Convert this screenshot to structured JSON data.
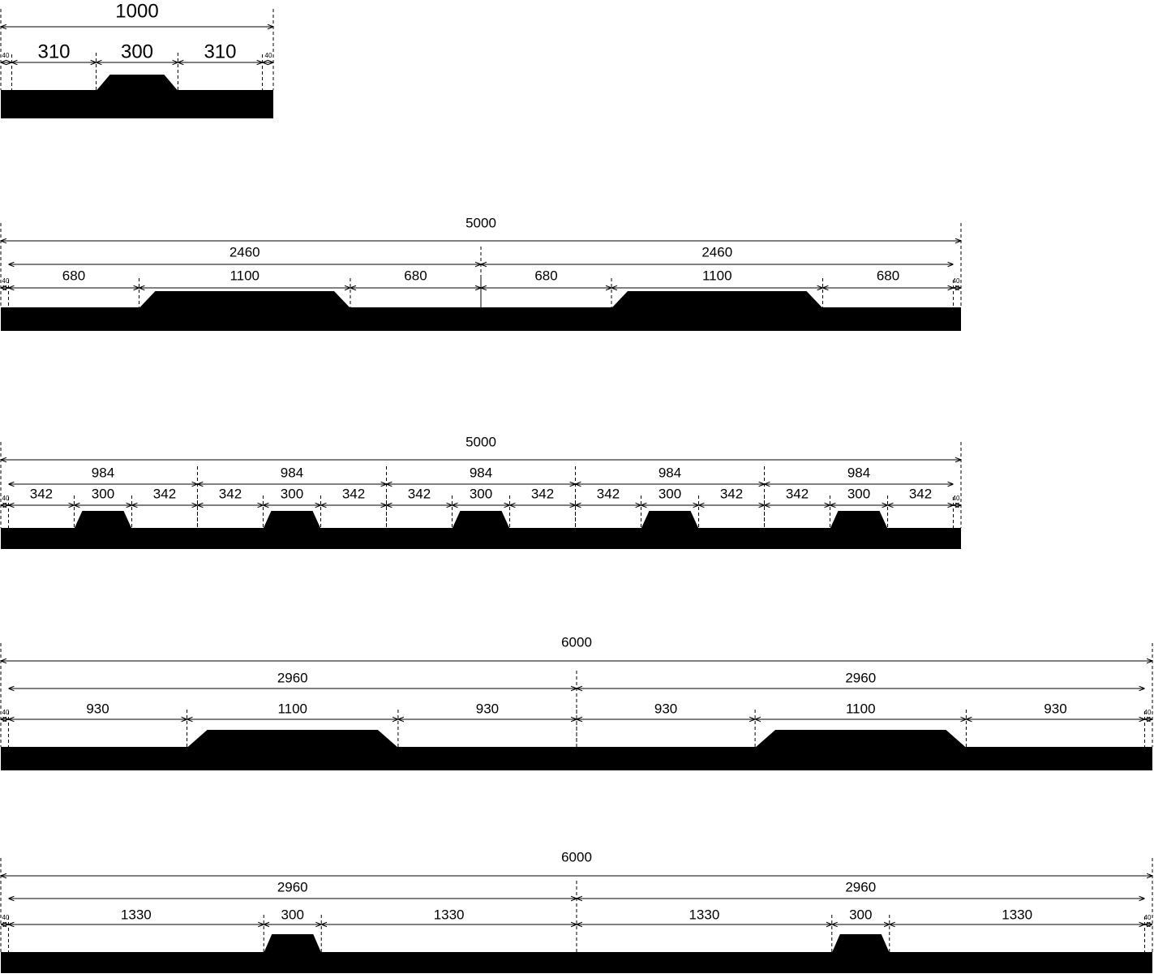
{
  "drawings": [
    {
      "total": 1000,
      "edges": [
        40,
        40
      ],
      "groups": [],
      "segments": [
        310,
        300,
        310
      ]
    },
    {
      "total": 5000,
      "edges": [
        40,
        40
      ],
      "groups": [
        2460,
        2460
      ],
      "segments": [
        680,
        1100,
        680,
        680,
        1100,
        680
      ]
    },
    {
      "total": 5000,
      "edges": [
        40,
        40
      ],
      "groups": [
        984,
        984,
        984,
        984,
        984
      ],
      "segments": [
        342,
        300,
        342,
        342,
        300,
        342,
        342,
        300,
        342,
        342,
        300,
        342,
        342,
        300,
        342
      ]
    },
    {
      "total": 6000,
      "edges": [
        40,
        40
      ],
      "groups": [
        2960,
        2960
      ],
      "segments": [
        930,
        1100,
        930,
        930,
        1100,
        930
      ]
    },
    {
      "total": 6000,
      "edges": [
        40,
        40
      ],
      "groups": [
        2960,
        2960
      ],
      "segments": [
        1330,
        300,
        1330,
        1330,
        300,
        1330
      ]
    }
  ]
}
